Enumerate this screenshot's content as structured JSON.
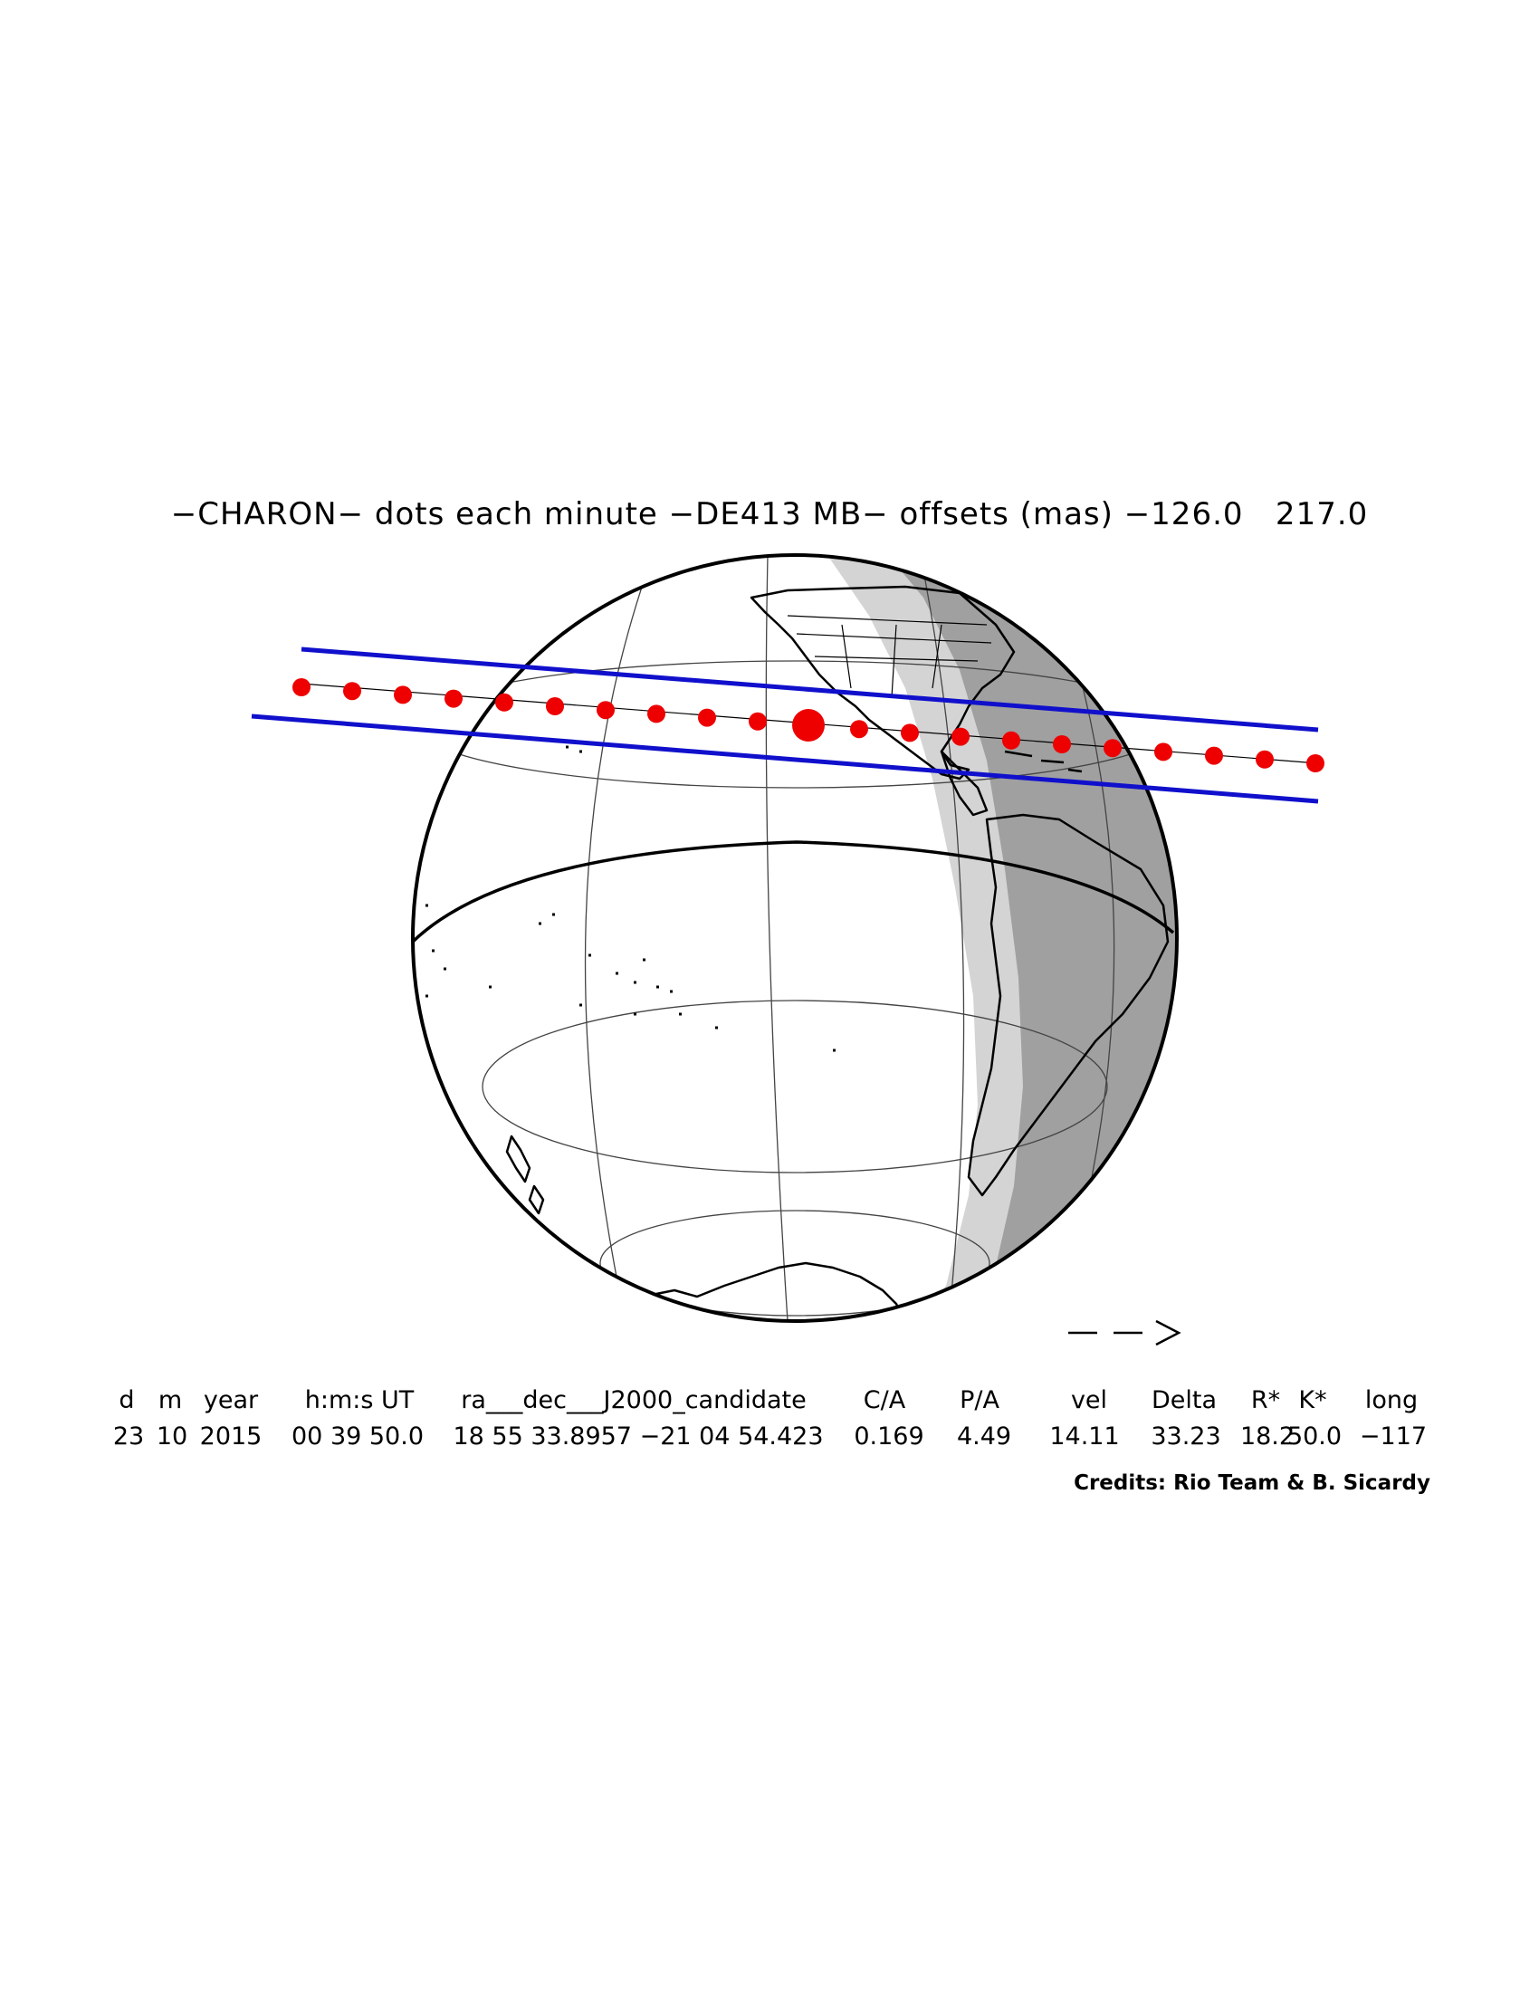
{
  "title": "−CHARON− dots each minute −DE413 MB− offsets (mas) −126.0   217.0",
  "direction_arrow": "−−>",
  "table": {
    "headers": [
      "d",
      "m",
      "year",
      "h:m:s UT",
      "ra___dec___J2000_candidate",
      "C/A",
      "P/A",
      "vel",
      "Delta",
      "R*",
      "K*",
      "long"
    ],
    "values": [
      "23",
      "10",
      "2015",
      "00 39 50.0",
      "18 55 33.8957 −21 04 54.423",
      "0.169",
      "4.49",
      "14.11",
      "33.23",
      "18.2",
      "50.0",
      "−117"
    ]
  },
  "credits": "Credits: Rio Team & B. Sicardy",
  "colors": {
    "path_lines": "#1010cc",
    "dots": "#ee0000",
    "night_shade": "#a0a0a0",
    "twilight_shade": "#d4d4d4"
  },
  "map": {
    "projection": "orthographic",
    "features": [
      "north-america",
      "south-america",
      "antarctica",
      "pacific-islands",
      "new-zealand"
    ],
    "occultation_dots_count": 21,
    "closest_approach_dot_index": 10
  }
}
